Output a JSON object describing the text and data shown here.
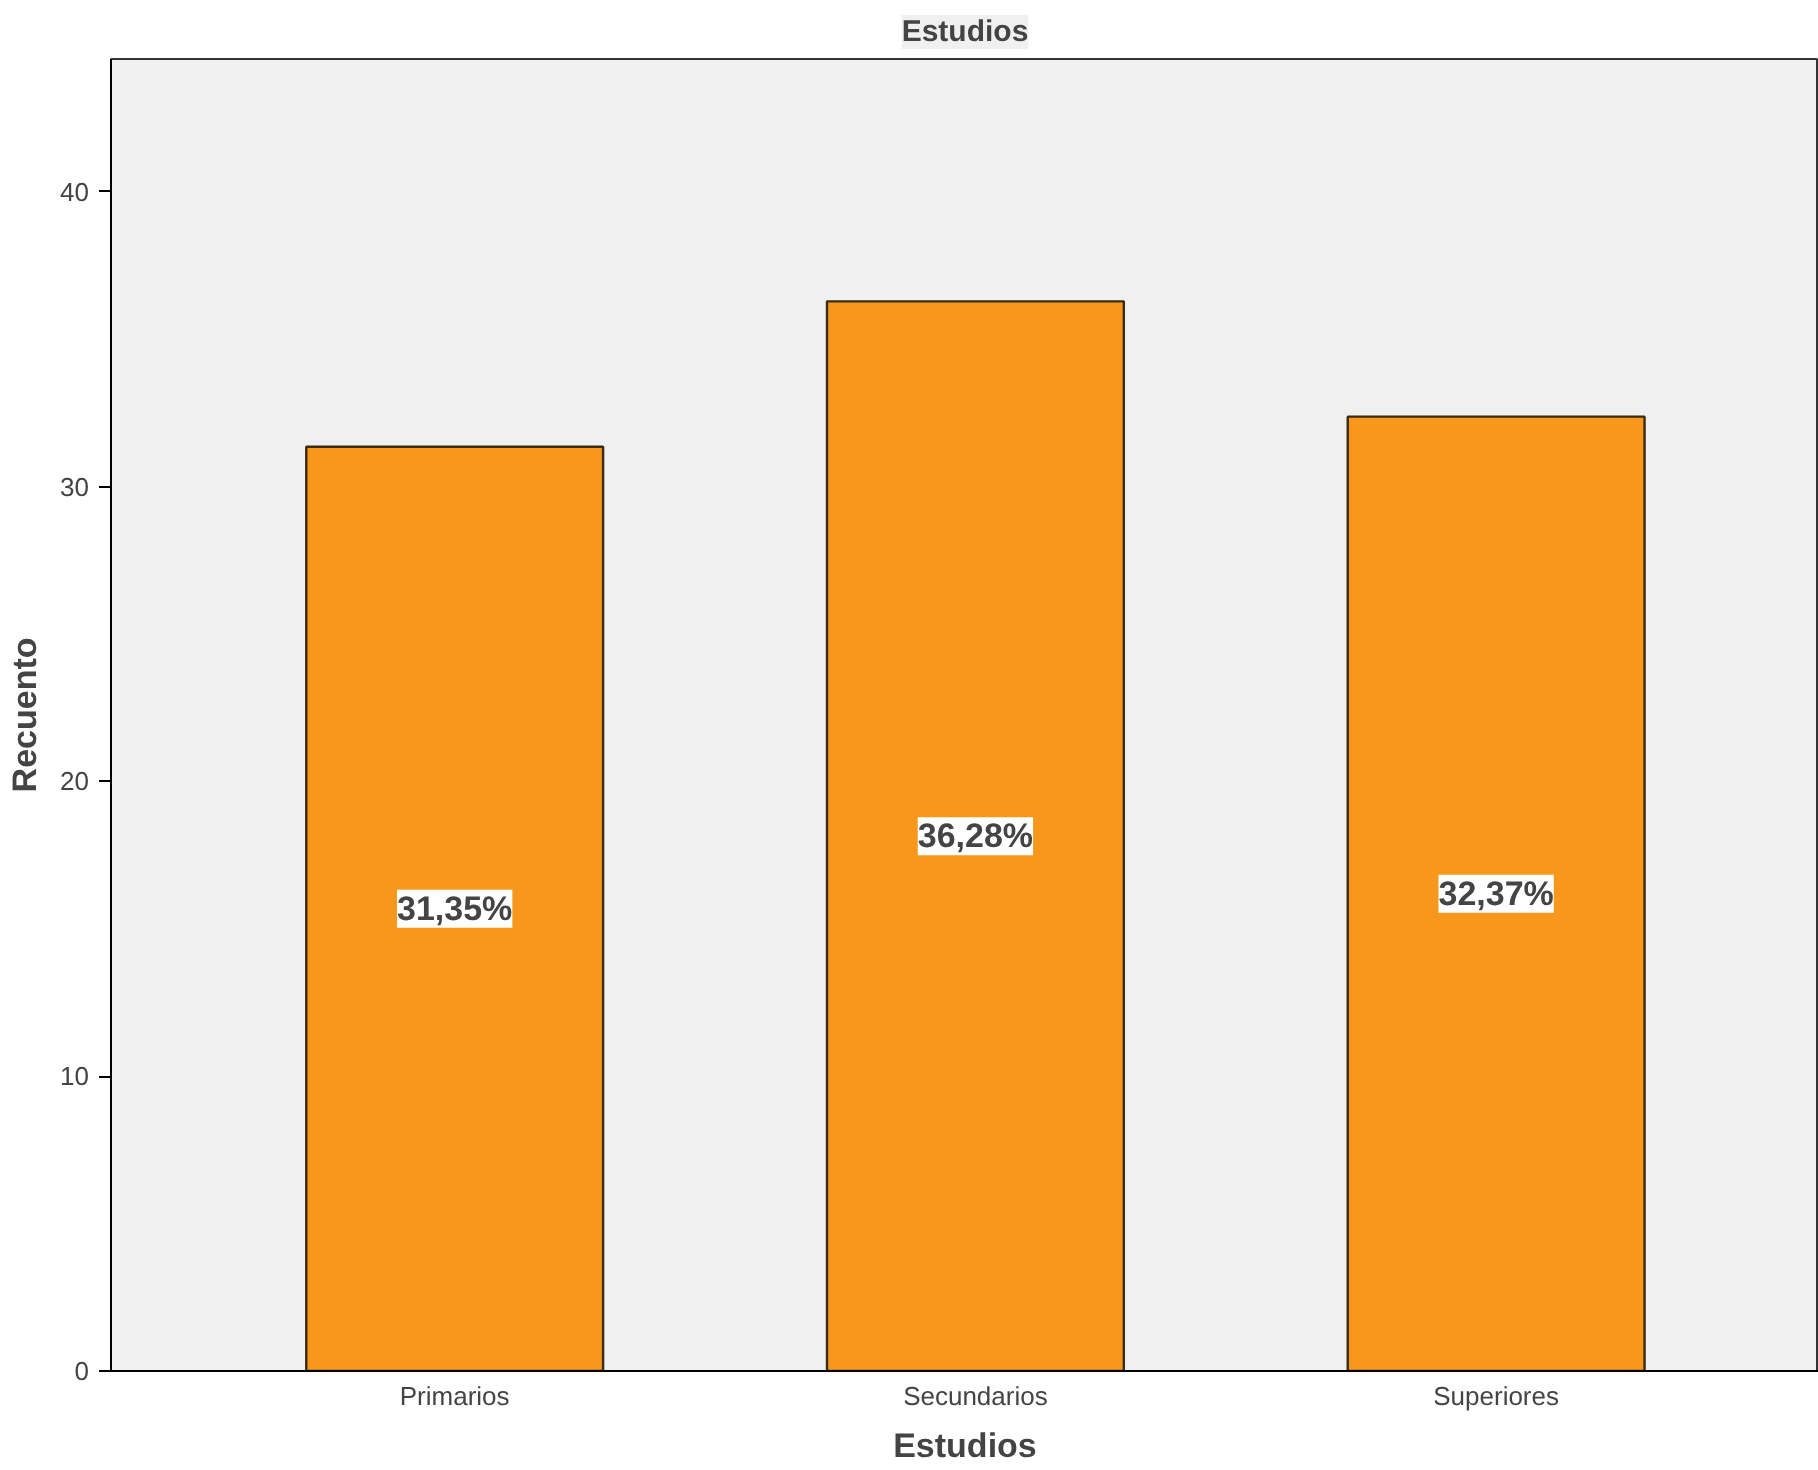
{
  "chart_data": {
    "type": "bar",
    "title": "Estudios",
    "xlabel": "Estudios",
    "ylabel": "Recuento",
    "categories": [
      "Primarios",
      "Secundarios",
      "Superiores"
    ],
    "values": [
      31.35,
      36.28,
      32.37
    ],
    "value_labels": [
      "31,35%",
      "36,28%",
      "32,37%"
    ],
    "color": "#f7981d",
    "ylim": [
      0,
      44.5
    ],
    "yticks": [
      0,
      10,
      20,
      30,
      40
    ]
  }
}
